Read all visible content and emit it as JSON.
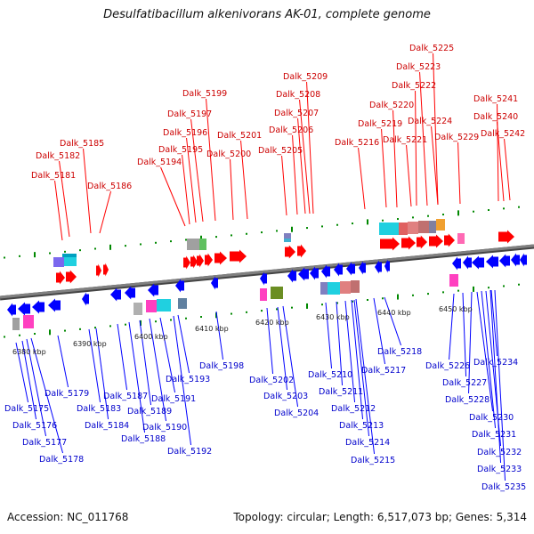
{
  "title": "Desulfatibacillum alkenivorans AK-01, complete genome",
  "footer": {
    "accession": "Accession: NC_011768",
    "summary": "Topology: circular; Length: 6,517,073 bp; Genes: 5,314"
  },
  "colors": {
    "top_strand": "#ff0000",
    "bottom_strand": "#0000ff",
    "top_label": "#cc0000",
    "bottom_label": "#0000cc",
    "tick": "#008800",
    "axis": "#808080"
  },
  "scale_labels": [
    "6380 kbp",
    "6390 kbp",
    "6400 kbp",
    "6410 kbp",
    "6420 kbp",
    "6430 kbp",
    "6440 kbp",
    "6450 kbp"
  ],
  "top_genes": [
    "Dalk_5181",
    "Dalk_5182",
    "Dalk_5185",
    "Dalk_5186",
    "Dalk_5194",
    "Dalk_5195",
    "Dalk_5196",
    "Dalk_5197",
    "Dalk_5199",
    "Dalk_5200",
    "Dalk_5201",
    "Dalk_5205",
    "Dalk_5206",
    "Dalk_5207",
    "Dalk_5208",
    "Dalk_5209",
    "Dalk_5216",
    "Dalk_5219",
    "Dalk_5220",
    "Dalk_5221",
    "Dalk_5222",
    "Dalk_5223",
    "Dalk_5224",
    "Dalk_5225",
    "Dalk_5229",
    "Dalk_5240",
    "Dalk_5241",
    "Dalk_5242"
  ],
  "bottom_genes": [
    "Dalk_5175",
    "Dalk_5176",
    "Dalk_5177",
    "Dalk_5178",
    "Dalk_5179",
    "Dalk_5183",
    "Dalk_5184",
    "Dalk_5187",
    "Dalk_5188",
    "Dalk_5189",
    "Dalk_5190",
    "Dalk_5191",
    "Dalk_5192",
    "Dalk_5193",
    "Dalk_5198",
    "Dalk_5202",
    "Dalk_5203",
    "Dalk_5204",
    "Dalk_5210",
    "Dalk_5211",
    "Dalk_5212",
    "Dalk_5213",
    "Dalk_5214",
    "Dalk_5215",
    "Dalk_5217",
    "Dalk_5218",
    "Dalk_5226",
    "Dalk_5227",
    "Dalk_5228",
    "Dalk_5230",
    "Dalk_5231",
    "Dalk_5232",
    "Dalk_5233",
    "Dalk_5234",
    "Dalk_5235"
  ]
}
